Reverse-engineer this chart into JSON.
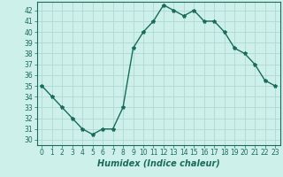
{
  "xlabel": "Humidex (Indice chaleur)",
  "x": [
    0,
    1,
    2,
    3,
    4,
    5,
    6,
    7,
    8,
    9,
    10,
    11,
    12,
    13,
    14,
    15,
    16,
    17,
    18,
    19,
    20,
    21,
    22,
    23
  ],
  "y": [
    35,
    34,
    33,
    32,
    31,
    30.5,
    31,
    31,
    33,
    38.5,
    40,
    41,
    42.5,
    42,
    41.5,
    42,
    41,
    41,
    40,
    38.5,
    38,
    37,
    35.5,
    35
  ],
  "line_color": "#1a6b5a",
  "bg_color": "#cef0eb",
  "grid_color": "#b0d8d2",
  "yticks": [
    30,
    31,
    32,
    33,
    34,
    35,
    36,
    37,
    38,
    39,
    40,
    41,
    42
  ],
  "xticks": [
    0,
    1,
    2,
    3,
    4,
    5,
    6,
    7,
    8,
    9,
    10,
    11,
    12,
    13,
    14,
    15,
    16,
    17,
    18,
    19,
    20,
    21,
    22,
    23
  ],
  "tick_fontsize": 5.5,
  "xlabel_fontsize": 7,
  "marker": "*",
  "markersize": 3,
  "linewidth": 1.0
}
